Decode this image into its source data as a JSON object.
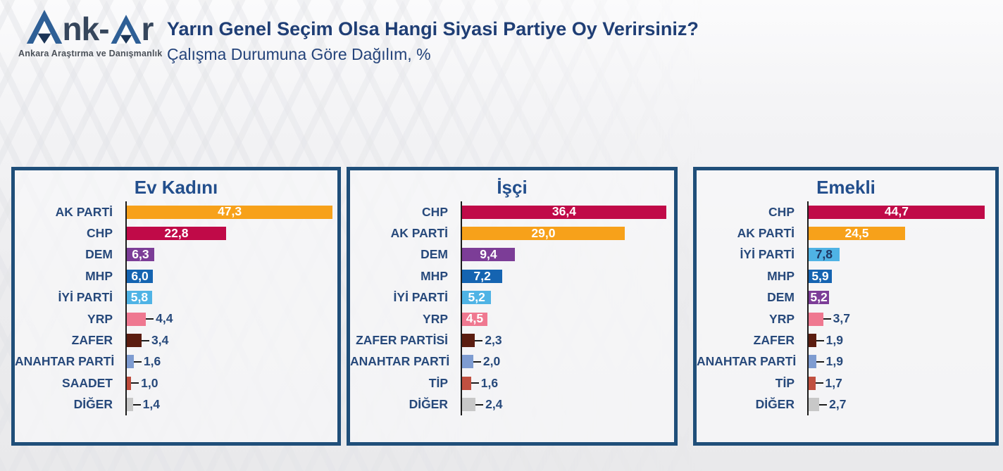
{
  "header": {
    "logo": {
      "brand_mid": "nk-",
      "brand_end": "r",
      "tagline": "Ankara Araştırma ve Danışmanlık"
    },
    "title": "Yarın Genel Seçim Olsa Hangi Siyasi Partiye Oy Verirsiniz?",
    "subtitle": "Çalışma Durumuna Göre Dağılım, %"
  },
  "colors": {
    "panel_border": "#1F4E79",
    "panel_title": "#224E8C",
    "category_label": "#27497B",
    "axis_line": "#1C1C1C",
    "value_inside_default": "#FFFFFF",
    "value_outside": "#27497B",
    "logo_blue": "#2E5F96",
    "logo_dark": "#1C3557",
    "parties": {
      "AK PARTİ": "#F7A11A",
      "CHP": "#C00A48",
      "DEM": "#7C3D97",
      "MHP": "#1564B1",
      "İYİ PARTİ": "#4FB3E5",
      "YRP": "#EF7890",
      "ZAFER": "#5B1D10",
      "ZAFER PARTİSİ": "#5B1D10",
      "ANAHTAR PARTİ": "#7E9CD1",
      "SAADET": "#BE4B3C",
      "TİP": "#C05040",
      "DİĞER": "#C8C8C8"
    }
  },
  "chart_data": [
    {
      "type": "bar",
      "orientation": "horizontal",
      "title": "Ev Kadını",
      "xlim": [
        0,
        48.4
      ],
      "grid": false,
      "legend": false,
      "categories": [
        "AK PARTİ",
        "CHP",
        "DEM",
        "MHP",
        "İYİ PARTİ",
        "YRP",
        "ZAFER",
        "ANAHTAR PARTİ",
        "SAADET",
        "DİĞER"
      ],
      "values": [
        47.3,
        22.8,
        6.3,
        6.0,
        5.8,
        4.4,
        3.4,
        1.6,
        1.0,
        1.4
      ],
      "value_labels": [
        "47,3",
        "22,8",
        "6,3",
        "6,0",
        "5,8",
        "4,4",
        "3,4",
        "1,6",
        "1,0",
        "1,4"
      ],
      "bar_colors": [
        "#F7A11A",
        "#C00A48",
        "#7C3D97",
        "#1564B1",
        "#4FB3E5",
        "#EF7890",
        "#5B1D10",
        "#7E9CD1",
        "#BE4B3C",
        "#C8C8C8"
      ],
      "value_label_position": [
        "inside",
        "inside",
        "inside",
        "inside",
        "inside",
        "outside",
        "outside",
        "outside",
        "outside",
        "outside"
      ],
      "value_label_color": [
        "#FFFFFF",
        "#FFFFFF",
        "#FFFFFF",
        "#FFFFFF",
        "#FFFFFF",
        "#27497B",
        "#27497B",
        "#27497B",
        "#27497B",
        "#27497B"
      ]
    },
    {
      "type": "bar",
      "orientation": "horizontal",
      "title": "İşçi",
      "xlim": [
        0,
        37.8
      ],
      "grid": false,
      "legend": false,
      "categories": [
        "CHP",
        "AK PARTİ",
        "DEM",
        "MHP",
        "İYİ PARTİ",
        "YRP",
        "ZAFER PARTİSİ",
        "ANAHTAR PARTİ",
        "TİP",
        "DİĞER"
      ],
      "values": [
        36.4,
        29.0,
        9.4,
        7.2,
        5.2,
        4.5,
        2.3,
        2.0,
        1.6,
        2.4
      ],
      "value_labels": [
        "36,4",
        "29,0",
        "9,4",
        "7,2",
        "5,2",
        "4,5",
        "2,3",
        "2,0",
        "1,6",
        "2,4"
      ],
      "bar_colors": [
        "#C00A48",
        "#F7A11A",
        "#7C3D97",
        "#1564B1",
        "#4FB3E5",
        "#EF7890",
        "#5B1D10",
        "#7E9CD1",
        "#C05040",
        "#C8C8C8"
      ],
      "value_label_position": [
        "inside",
        "inside",
        "inside",
        "inside",
        "inside",
        "inside",
        "outside",
        "outside",
        "outside",
        "outside"
      ],
      "value_label_color": [
        "#FFFFFF",
        "#FFFFFF",
        "#FFFFFF",
        "#FFFFFF",
        "#FFFFFF",
        "#FFFFFF",
        "#27497B",
        "#27497B",
        "#27497B",
        "#27497B"
      ]
    },
    {
      "type": "bar",
      "orientation": "horizontal",
      "title": "Emekli",
      "xlim": [
        0,
        47.4
      ],
      "grid": false,
      "legend": false,
      "categories": [
        "CHP",
        "AK PARTİ",
        "İYİ PARTİ",
        "MHP",
        "DEM",
        "YRP",
        "ZAFER",
        "ANAHTAR PARTİ",
        "TİP",
        "DİĞER"
      ],
      "values": [
        44.7,
        24.5,
        7.8,
        5.9,
        5.2,
        3.7,
        1.9,
        1.9,
        1.7,
        2.7
      ],
      "value_labels": [
        "44,7",
        "24,5",
        "7,8",
        "5,9",
        "5,2",
        "3,7",
        "1,9",
        "1,9",
        "1,7",
        "2,7"
      ],
      "bar_colors": [
        "#C00A48",
        "#F7A11A",
        "#4FB3E5",
        "#1564B1",
        "#7C3D97",
        "#EF7890",
        "#5B1D10",
        "#7E9CD1",
        "#C05040",
        "#C8C8C8"
      ],
      "value_label_position": [
        "inside",
        "inside",
        "inside",
        "inside",
        "inside",
        "outside",
        "outside",
        "outside",
        "outside",
        "outside"
      ],
      "value_label_color": [
        "#FFFFFF",
        "#FFFFFF",
        "#1F3864",
        "#FFFFFF",
        "#FFFFFF",
        "#27497B",
        "#27497B",
        "#27497B",
        "#27497B",
        "#27497B"
      ]
    }
  ]
}
